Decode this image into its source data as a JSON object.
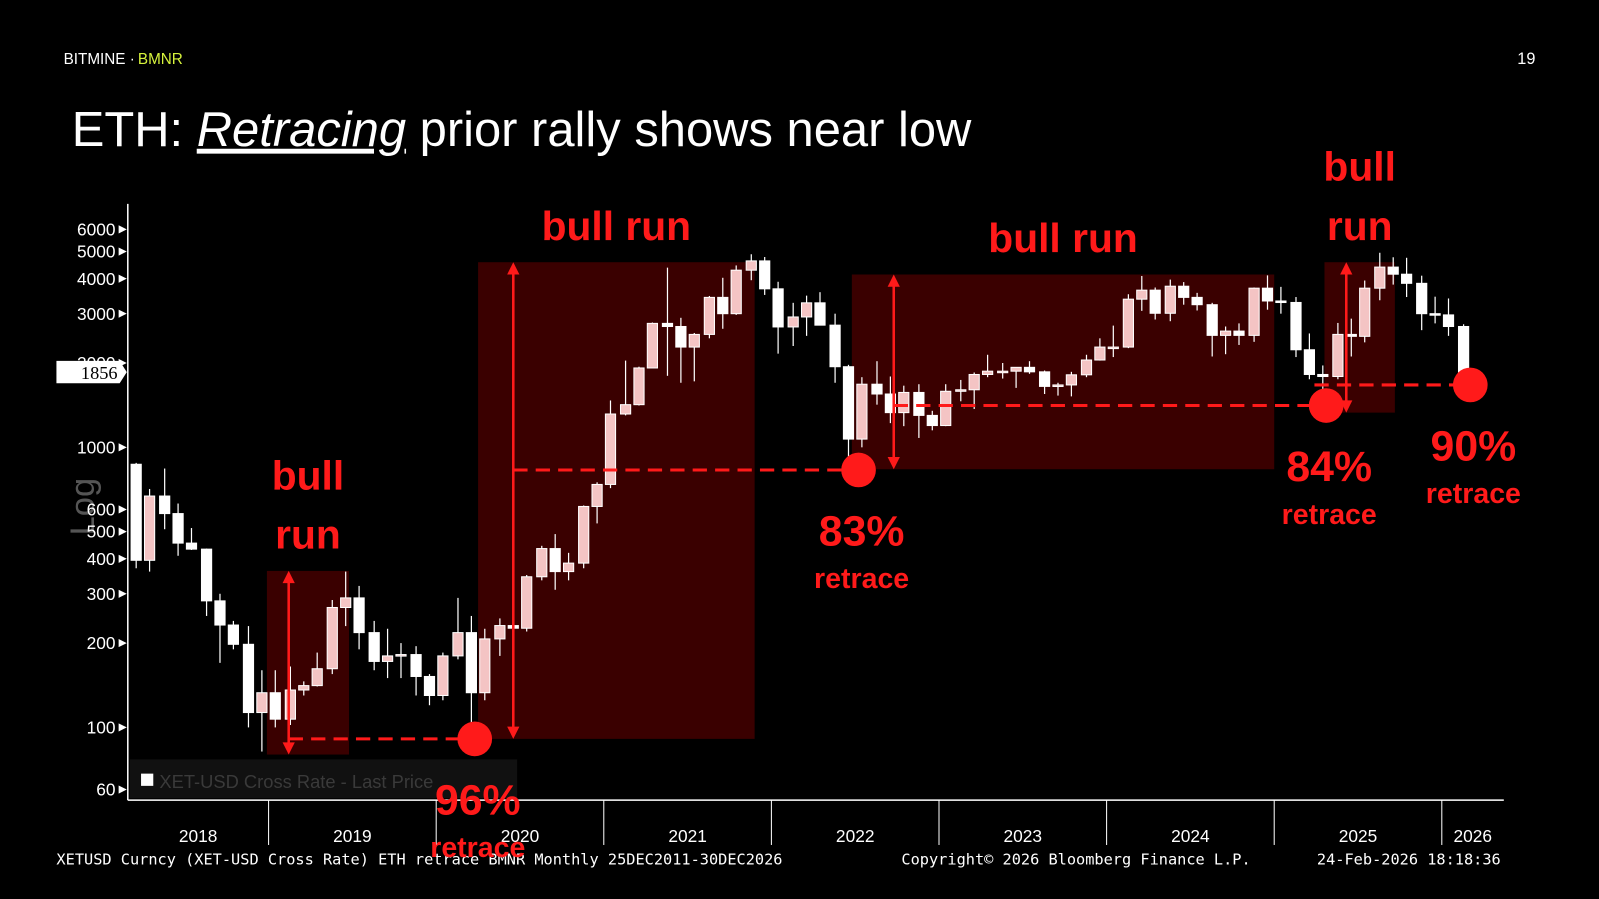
{
  "header": {
    "brand": "BITMINE ·",
    "ticker": "BMNR",
    "page": "19"
  },
  "title_parts": [
    "ETH: ",
    "Retracing",
    " prior rally shows near low"
  ],
  "chart_data": {
    "type": "candlestick",
    "ylabel": "Log",
    "log_scale": true,
    "ylim": [
      55,
      7400
    ],
    "yticks": [
      60,
      100,
      200,
      300,
      400,
      500,
      600,
      1000,
      2000,
      3000,
      4000,
      5000,
      6000
    ],
    "xlim": [
      2018.16,
      2026.37
    ],
    "xticks": [
      {
        "value": 2018,
        "label": "2018"
      },
      {
        "value": 2019,
        "label": "2019"
      },
      {
        "value": 2020,
        "label": "2020"
      },
      {
        "value": 2021,
        "label": "2021"
      },
      {
        "value": 2022,
        "label": "2022"
      },
      {
        "value": 2023,
        "label": "2023"
      },
      {
        "value": 2024,
        "label": "2024"
      },
      {
        "value": 2025,
        "label": "2025"
      },
      {
        "value": 2026,
        "label": "2026"
      }
    ],
    "up_color": "#f4c4c4",
    "down_color": "#ffffff",
    "region_color": "#3a0000",
    "annotation_color": "#ff1a1a",
    "legend": "XET-USD Cross Rate - Last Price",
    "last_price": 1856,
    "x": [
      2018.21,
      2018.29,
      2018.38,
      2018.46,
      2018.54,
      2018.63,
      2018.71,
      2018.79,
      2018.88,
      2018.96,
      2019.04,
      2019.13,
      2019.21,
      2019.29,
      2019.38,
      2019.46,
      2019.54,
      2019.63,
      2019.71,
      2019.79,
      2019.88,
      2019.96,
      2020.04,
      2020.13,
      2020.21,
      2020.29,
      2020.38,
      2020.46,
      2020.54,
      2020.63,
      2020.71,
      2020.79,
      2020.88,
      2020.96,
      2021.04,
      2021.13,
      2021.21,
      2021.29,
      2021.38,
      2021.46,
      2021.54,
      2021.63,
      2021.71,
      2021.79,
      2021.88,
      2021.96,
      2022.04,
      2022.13,
      2022.21,
      2022.29,
      2022.38,
      2022.46,
      2022.54,
      2022.63,
      2022.71,
      2022.79,
      2022.88,
      2022.96,
      2023.04,
      2023.13,
      2023.21,
      2023.29,
      2023.38,
      2023.46,
      2023.54,
      2023.63,
      2023.71,
      2023.79,
      2023.88,
      2023.96,
      2024.04,
      2024.13,
      2024.21,
      2024.29,
      2024.38,
      2024.46,
      2024.54,
      2024.63,
      2024.71,
      2024.79,
      2024.88,
      2024.96,
      2025.04,
      2025.13,
      2025.21,
      2025.29,
      2025.38,
      2025.46,
      2025.54,
      2025.63,
      2025.71,
      2025.79,
      2025.88,
      2025.96,
      2026.04,
      2026.13
    ],
    "open": [
      870,
      395,
      670,
      580,
      455,
      433,
      283,
      232,
      198,
      113,
      133,
      107,
      136,
      141,
      162,
      268,
      290,
      218,
      172,
      180,
      182,
      152,
      130,
      180,
      218,
      133,
      207,
      231,
      226,
      345,
      435,
      360,
      386,
      615,
      737,
      1315,
      1420,
      1920,
      2770,
      2700,
      2280,
      2530,
      3430,
      3000,
      4290,
      4630,
      3680,
      2690,
      2920,
      3280,
      2730,
      1940,
      1070,
      1680,
      1550,
      1330,
      1570,
      1300,
      1196,
      1585,
      1605,
      1820,
      1870,
      1870,
      1930,
      1860,
      1650,
      1670,
      1815,
      2050,
      2280,
      2280,
      3380,
      3640,
      3010,
      3760,
      3430,
      3230,
      2510,
      2600,
      2510,
      3700,
      3330,
      3290,
      2230,
      1820,
      1790,
      2530,
      2490,
      3700,
      4400,
      4150,
      3850,
      3000,
      2970,
      2700
    ],
    "high": [
      880,
      710,
      840,
      630,
      515,
      435,
      300,
      240,
      230,
      160,
      160,
      165,
      146,
      185,
      285,
      360,
      320,
      240,
      225,
      200,
      195,
      155,
      185,
      290,
      250,
      225,
      245,
      250,
      350,
      445,
      490,
      420,
      620,
      750,
      1470,
      2040,
      1940,
      2790,
      4380,
      2900,
      2560,
      3470,
      4030,
      4460,
      4890,
      4780,
      3900,
      3280,
      3480,
      3580,
      3000,
      1970,
      1780,
      2030,
      1790,
      1660,
      1680,
      1350,
      1680,
      1740,
      1850,
      2140,
      2000,
      1930,
      2030,
      1880,
      1700,
      1860,
      2140,
      2450,
      2720,
      3520,
      4090,
      3720,
      3970,
      3890,
      3560,
      3280,
      2700,
      2770,
      3720,
      4110,
      3740,
      3440,
      2550,
      1960,
      2780,
      2880,
      3940,
      4950,
      4770,
      4750,
      4100,
      3450,
      3400,
      2750
    ],
    "low": [
      370,
      360,
      510,
      410,
      430,
      250,
      170,
      190,
      100,
      82,
      100,
      102,
      130,
      140,
      155,
      230,
      190,
      160,
      150,
      150,
      130,
      120,
      125,
      175,
      90,
      125,
      180,
      215,
      220,
      335,
      310,
      335,
      370,
      535,
      715,
      1300,
      1410,
      1920,
      1800,
      1700,
      1720,
      2450,
      2650,
      2970,
      3950,
      3500,
      2160,
      2300,
      2500,
      2770,
      1700,
      880,
      1000,
      1420,
      1220,
      1190,
      1080,
      1150,
      1190,
      1460,
      1370,
      1780,
      1760,
      1630,
      1830,
      1550,
      1530,
      1520,
      1780,
      2040,
      2100,
      2260,
      3070,
      2860,
      2820,
      3230,
      3080,
      2110,
      2150,
      2320,
      2380,
      3100,
      3000,
      2100,
      1750,
      1390,
      1750,
      2110,
      2370,
      3350,
      3810,
      3440,
      2620,
      2770,
      2500,
      1750
    ],
    "close": [
      395,
      670,
      580,
      455,
      433,
      283,
      232,
      198,
      113,
      133,
      107,
      136,
      141,
      162,
      268,
      290,
      218,
      172,
      180,
      182,
      152,
      130,
      180,
      218,
      133,
      207,
      231,
      226,
      345,
      435,
      360,
      386,
      615,
      737,
      1315,
      1420,
      1920,
      2770,
      2700,
      2280,
      2530,
      3430,
      3000,
      4290,
      4630,
      3680,
      2690,
      2920,
      3280,
      2730,
      1940,
      1070,
      1680,
      1550,
      1330,
      1570,
      1300,
      1196,
      1585,
      1605,
      1820,
      1870,
      1870,
      1930,
      1860,
      1650,
      1670,
      1815,
      2050,
      2280,
      2280,
      3380,
      3640,
      3010,
      3760,
      3430,
      3230,
      2510,
      2600,
      2510,
      3700,
      3330,
      3290,
      2230,
      1820,
      1790,
      2530,
      2490,
      3700,
      4400,
      4150,
      3850,
      3000,
      2970,
      2700,
      1856
    ],
    "regions": [
      {
        "labels": [
          "bull",
          "run"
        ],
        "x": [
          2018.99,
          2019.48
        ],
        "y": [
          80,
          362
        ],
        "arrow_x": 2019.12
      },
      {
        "labels": [
          "bull run"
        ],
        "x": [
          2020.25,
          2021.9
        ],
        "y": [
          91,
          4580
        ],
        "arrow_x": 2020.46
      },
      {
        "labels": [
          "bull run"
        ],
        "x": [
          2022.48,
          2025.0
        ],
        "y": [
          835,
          4140
        ],
        "arrow_x": 2022.73
      },
      {
        "labels": [
          "bull",
          "run"
        ],
        "x": [
          2025.3,
          2025.72
        ],
        "y": [
          1330,
          4580
        ],
        "arrow_x": 2025.43
      }
    ],
    "retraces": [
      {
        "label": "96%",
        "sublabel": "retrace",
        "x": [
          2019.12,
          2020.23
        ],
        "y": 91
      },
      {
        "label": "83%",
        "sublabel": "retrace",
        "x": [
          2020.46,
          2022.52
        ],
        "y": 830
      },
      {
        "label": "84%",
        "sublabel": "retrace",
        "x": [
          2022.73,
          2025.31
        ],
        "y": 1410
      },
      {
        "label": "90%",
        "sublabel": "retrace",
        "x": [
          2025.24,
          2026.17
        ],
        "y": 1670
      }
    ]
  },
  "footer": {
    "left": "XETUSD Curncy (XET-USD Cross Rate) ETH retrace BMNR Monthly 25DEC2011-30DEC2026",
    "center": "Copyright© 2026 Bloomberg Finance L.P.",
    "right": "24-Feb-2026 18:18:36"
  }
}
